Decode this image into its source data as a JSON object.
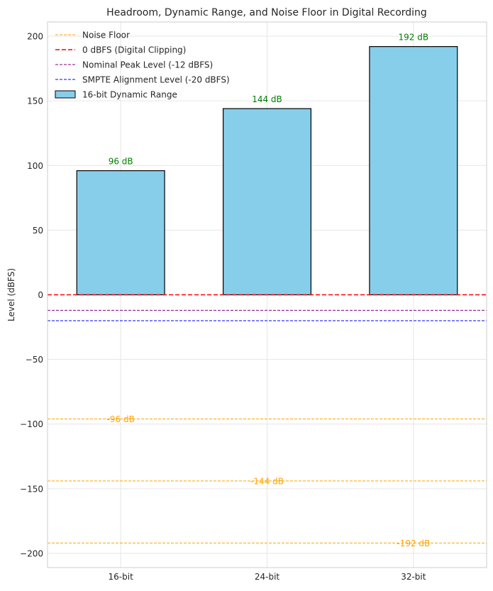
{
  "chart_data": {
    "type": "bar",
    "title": "Headroom, Dynamic Range, and Noise Floor in Digital Recording",
    "xlabel": "",
    "ylabel": "Level (dBFS)",
    "ylim": [
      -211,
      211
    ],
    "yticks": [
      -200,
      -150,
      -100,
      -50,
      0,
      50,
      100,
      150,
      200
    ],
    "ytick_labels": [
      "−200",
      "−150",
      "−100",
      "−50",
      "0",
      "50",
      "100",
      "150",
      "200"
    ],
    "grid": true,
    "legend_position": "top-left",
    "categories": [
      "16-bit",
      "24-bit",
      "32-bit"
    ],
    "series": [
      {
        "name": "16-bit Dynamic Range",
        "values": [
          96,
          144,
          192
        ],
        "color": "#87CEEB",
        "edge_color": "#000000",
        "bar_labels": [
          "96 dB",
          "144 dB",
          "192 dB"
        ],
        "bar_label_color": "#008000"
      }
    ],
    "noise_floor": {
      "name": "Noise Floor",
      "values": [
        -96,
        -144,
        -192
      ],
      "labels": [
        "-96 dB",
        "-144 dB",
        "-192 dB"
      ],
      "color": "#FFA500"
    },
    "reference_lines": [
      {
        "name": "0 dBFS (Digital Clipping)",
        "value": 0,
        "color": "#FF0000",
        "style": "dashed-thick"
      },
      {
        "name": "Nominal Peak Level (-12 dBFS)",
        "value": -12,
        "color": "#800080",
        "style": "dashed"
      },
      {
        "name": "SMPTE Alignment Level (-20 dBFS)",
        "value": -20,
        "color": "#0000FF",
        "style": "dashed"
      }
    ],
    "legend_entries": [
      "Noise Floor",
      "0 dBFS (Digital Clipping)",
      "Nominal Peak Level (-12 dBFS)",
      "SMPTE Alignment Level (-20 dBFS)",
      "16-bit Dynamic Range"
    ]
  }
}
